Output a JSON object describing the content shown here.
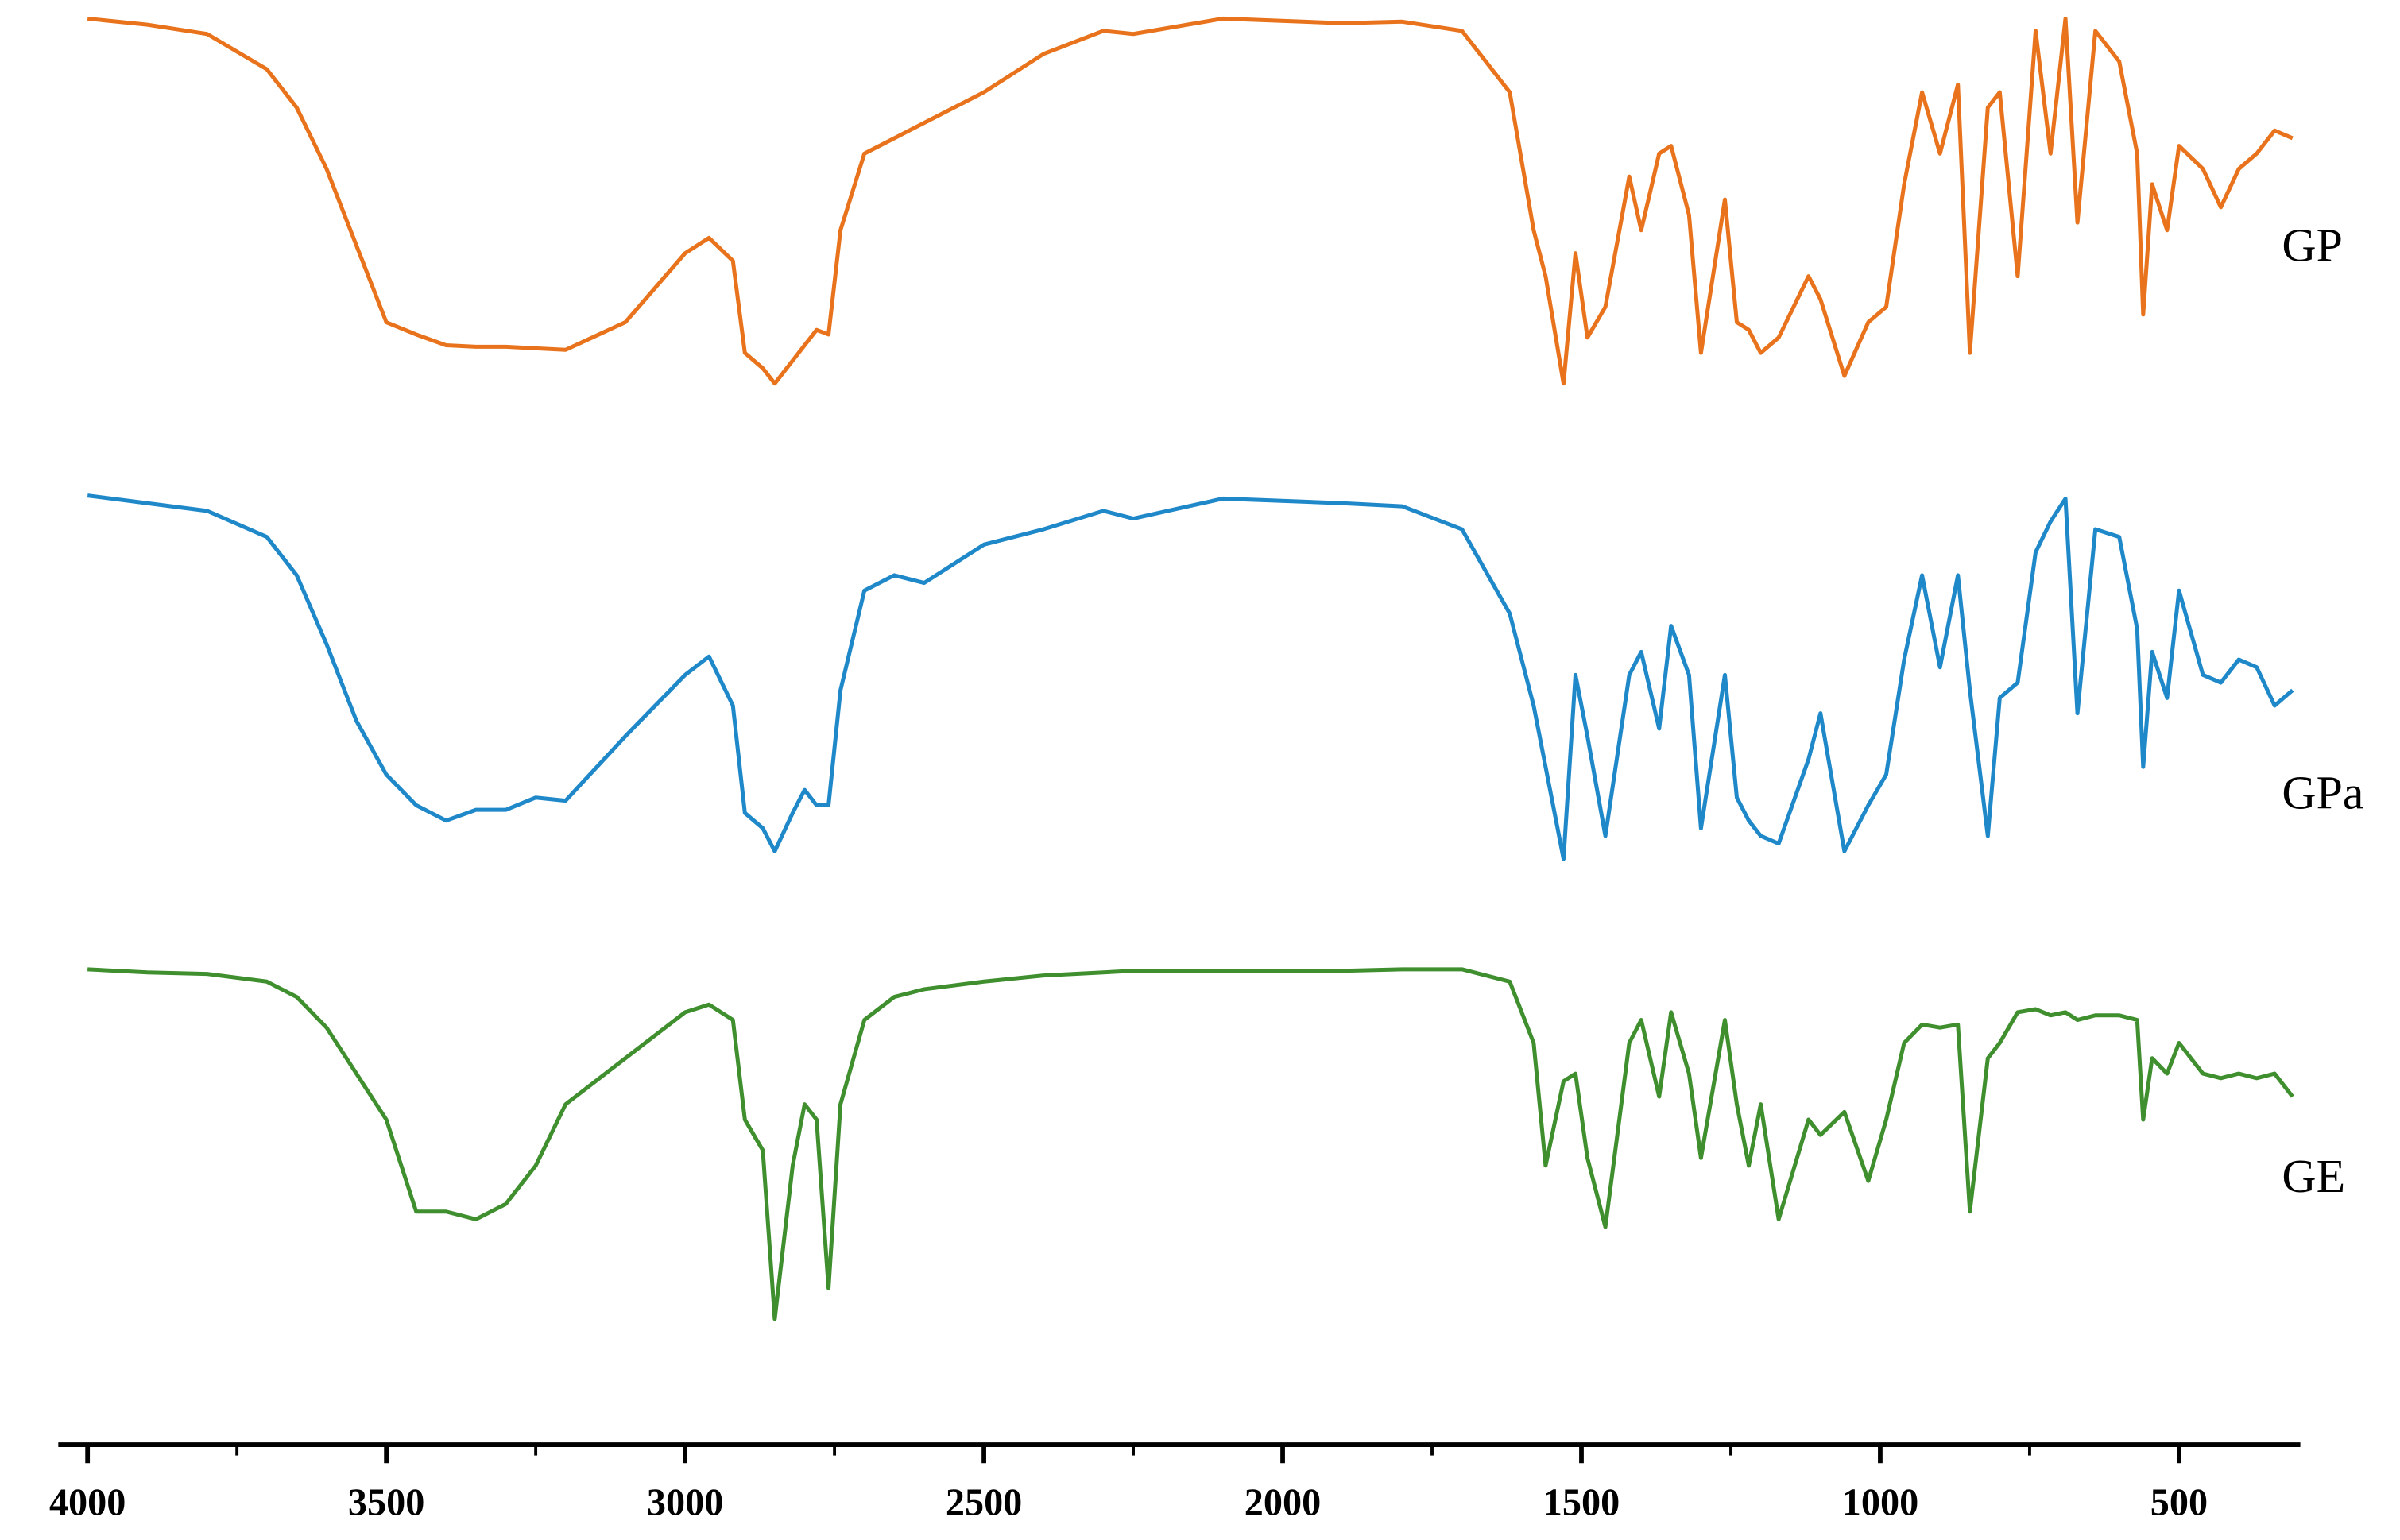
{
  "chart_data": {
    "type": "line",
    "x": [
      4000,
      3900,
      3800,
      3700,
      3650,
      3600,
      3550,
      3500,
      3450,
      3400,
      3350,
      3300,
      3250,
      3200,
      3100,
      3000,
      2960,
      2920,
      2900,
      2870,
      2850,
      2820,
      2800,
      2780,
      2760,
      2740,
      2700,
      2650,
      2600,
      2500,
      2400,
      2300,
      2250,
      2100,
      1900,
      1800,
      1700,
      1620,
      1580,
      1560,
      1530,
      1510,
      1490,
      1460,
      1420,
      1400,
      1370,
      1350,
      1320,
      1300,
      1260,
      1240,
      1220,
      1200,
      1170,
      1120,
      1100,
      1060,
      1020,
      990,
      960,
      930,
      900,
      870,
      850,
      820,
      800,
      770,
      740,
      715,
      690,
      670,
      640,
      600,
      570,
      560,
      545,
      520,
      500,
      460,
      430,
      400,
      370,
      340,
      310
    ],
    "series": [
      {
        "name": "GP",
        "color": "#e8731c",
        "values": [
          92.8,
          92.4,
          91.8,
          89.5,
          87,
          83,
          78,
          73,
          72.2,
          71.5,
          71.4,
          71.4,
          71.3,
          71.2,
          73,
          77.5,
          78.5,
          77,
          71,
          70,
          69,
          70.5,
          71.5,
          72.5,
          72.2,
          79,
          84,
          85,
          86,
          88,
          90.5,
          92,
          91.8,
          92.8,
          92.5,
          92.6,
          92,
          88,
          79,
          76,
          69,
          77.5,
          72,
          74,
          82.5,
          79,
          84,
          84.5,
          80,
          71,
          81,
          73,
          72.5,
          71,
          72,
          76,
          74.5,
          69.5,
          73,
          74,
          82,
          88,
          84,
          88.5,
          71,
          87,
          88,
          76,
          92,
          84,
          92.8,
          79.5,
          92,
          90,
          84,
          73.5,
          82,
          79,
          84.5,
          83,
          80.5,
          83,
          84,
          85.5,
          85
        ]
      },
      {
        "name": "GPa",
        "color": "#1f88c9",
        "values": [
          61.7,
          61.2,
          60.7,
          59,
          56.5,
          52,
          47,
          43.5,
          41.5,
          40.5,
          41.2,
          41.2,
          42,
          41.8,
          46,
          50,
          51.2,
          48,
          41,
          40,
          38.5,
          41,
          42.5,
          41.5,
          41.5,
          49,
          55.5,
          56.5,
          56,
          58.5,
          59.5,
          60.7,
          60.2,
          61.5,
          61.2,
          61,
          59.5,
          54,
          48,
          44,
          38,
          50,
          46,
          39.5,
          50,
          51.5,
          46.5,
          53.2,
          50,
          40,
          50,
          42,
          40.5,
          39.5,
          39,
          44.5,
          47.5,
          38.5,
          41.5,
          43.5,
          51,
          56.5,
          50.5,
          56.5,
          49,
          39.5,
          48.5,
          49.5,
          58,
          60,
          61.5,
          47.5,
          59.5,
          59,
          53,
          44,
          51.5,
          48.5,
          55.5,
          50,
          49.5,
          51,
          50.5,
          48,
          49
        ]
      },
      {
        "name": "GE",
        "color": "#3f8f2f",
        "values": [
          30.8,
          30.6,
          30.5,
          30,
          29,
          27,
          24,
          21,
          15,
          15,
          14.5,
          15.5,
          18,
          22,
          25,
          28,
          28.5,
          27.5,
          21,
          19,
          8,
          18,
          22,
          21,
          10,
          22,
          27.5,
          29,
          29.5,
          30,
          30.4,
          30.6,
          30.7,
          30.7,
          30.7,
          30.8,
          30.8,
          30,
          26,
          18,
          23.5,
          24,
          18.5,
          14,
          26,
          27.5,
          22.5,
          28,
          24,
          18.5,
          27.5,
          22,
          18,
          22,
          14.5,
          21,
          20,
          21.5,
          17,
          21,
          26,
          27.2,
          27,
          27.2,
          15,
          25,
          26,
          28,
          28.2,
          27.8,
          28,
          27.5,
          27.8,
          27.8,
          27.5,
          21,
          25,
          24,
          26,
          24,
          23.7,
          24,
          23.7,
          24,
          22.5
        ]
      }
    ],
    "xlim": [
      4049,
      297
    ],
    "xticks": [
      4000,
      3500,
      3000,
      2500,
      2000,
      1500,
      1000,
      500
    ],
    "xminor_ticks": [
      3750,
      3250,
      2750,
      2250,
      1750,
      1250,
      750
    ],
    "ylim": [
      0,
      94
    ]
  }
}
